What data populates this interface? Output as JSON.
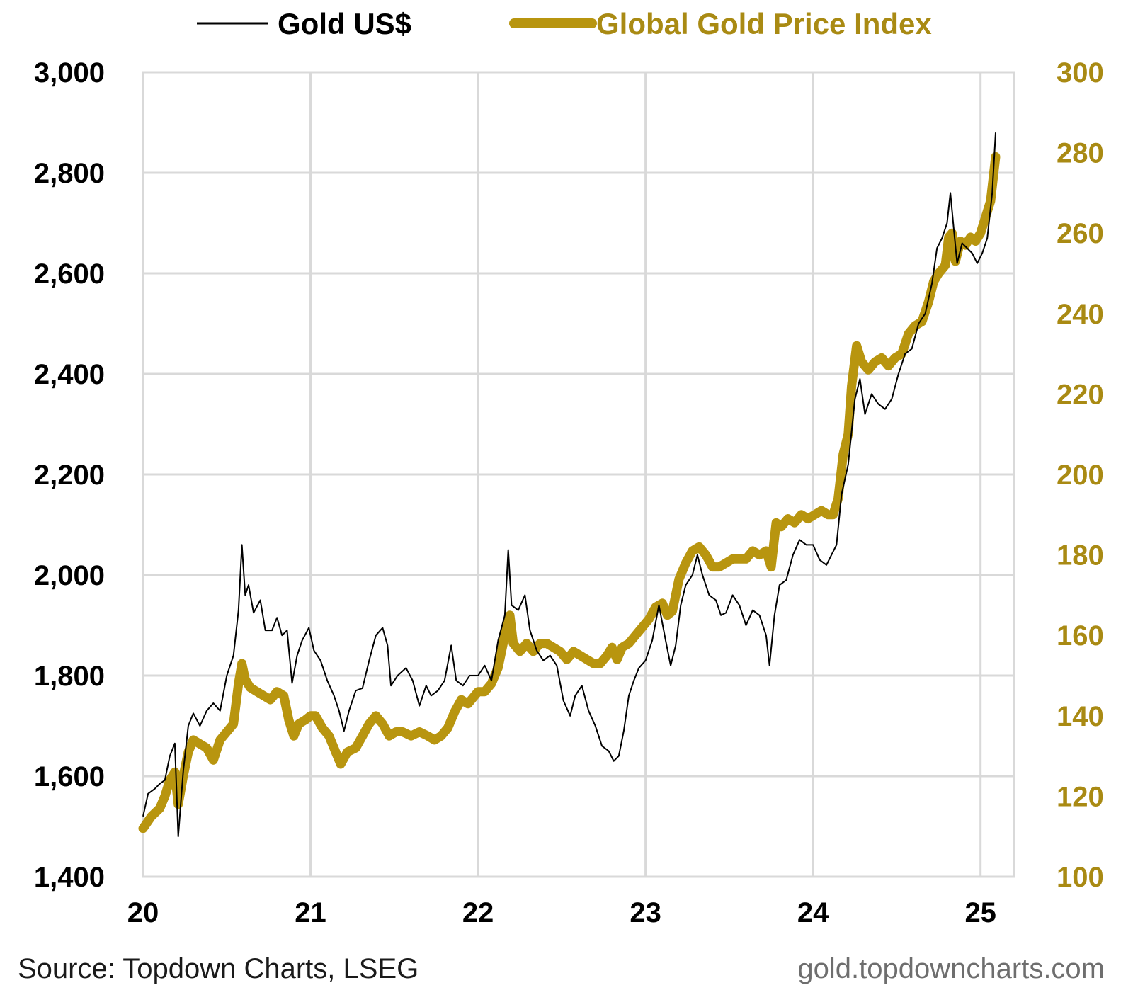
{
  "chart_data": {
    "type": "line",
    "title": "",
    "legend_position": "top",
    "x_axis": {
      "label": "",
      "ticks": [
        {
          "value": 2020,
          "label": "20"
        },
        {
          "value": 2021,
          "label": "21"
        },
        {
          "value": 2022,
          "label": "22"
        },
        {
          "value": 2023,
          "label": "23"
        },
        {
          "value": 2024,
          "label": "24"
        },
        {
          "value": 2025,
          "label": "25"
        }
      ],
      "range": [
        2020.0,
        2025.1
      ]
    },
    "y_left": {
      "label": "",
      "range": [
        1400,
        3000
      ],
      "ticks": [
        "1,400",
        "1,600",
        "1,800",
        "2,000",
        "2,200",
        "2,400",
        "2,600",
        "2,800",
        "3,000"
      ]
    },
    "y_right": {
      "label": "",
      "range": [
        100,
        300
      ],
      "ticks": [
        "100",
        "120",
        "140",
        "160",
        "180",
        "200",
        "220",
        "240",
        "260",
        "280",
        "300"
      ]
    },
    "grid": true,
    "series": [
      {
        "name": "Gold US$",
        "axis": "left",
        "color": "#000000",
        "points": [
          [
            2020.0,
            1520
          ],
          [
            2020.03,
            1565
          ],
          [
            2020.07,
            1575
          ],
          [
            2020.1,
            1585
          ],
          [
            2020.13,
            1592
          ],
          [
            2020.16,
            1640
          ],
          [
            2020.19,
            1665
          ],
          [
            2020.21,
            1480
          ],
          [
            2020.24,
            1610
          ],
          [
            2020.27,
            1700
          ],
          [
            2020.3,
            1725
          ],
          [
            2020.34,
            1700
          ],
          [
            2020.38,
            1730
          ],
          [
            2020.42,
            1745
          ],
          [
            2020.46,
            1730
          ],
          [
            2020.5,
            1800
          ],
          [
            2020.54,
            1840
          ],
          [
            2020.57,
            1930
          ],
          [
            2020.59,
            2060
          ],
          [
            2020.61,
            1960
          ],
          [
            2020.63,
            1980
          ],
          [
            2020.66,
            1925
          ],
          [
            2020.7,
            1950
          ],
          [
            2020.73,
            1890
          ],
          [
            2020.77,
            1890
          ],
          [
            2020.8,
            1915
          ],
          [
            2020.83,
            1880
          ],
          [
            2020.86,
            1890
          ],
          [
            2020.89,
            1785
          ],
          [
            2020.92,
            1840
          ],
          [
            2020.95,
            1870
          ],
          [
            2020.99,
            1895
          ],
          [
            2021.02,
            1850
          ],
          [
            2021.06,
            1830
          ],
          [
            2021.1,
            1790
          ],
          [
            2021.14,
            1760
          ],
          [
            2021.17,
            1730
          ],
          [
            2021.2,
            1690
          ],
          [
            2021.23,
            1730
          ],
          [
            2021.27,
            1770
          ],
          [
            2021.31,
            1775
          ],
          [
            2021.35,
            1830
          ],
          [
            2021.39,
            1880
          ],
          [
            2021.43,
            1895
          ],
          [
            2021.46,
            1860
          ],
          [
            2021.48,
            1780
          ],
          [
            2021.52,
            1800
          ],
          [
            2021.57,
            1815
          ],
          [
            2021.61,
            1790
          ],
          [
            2021.65,
            1740
          ],
          [
            2021.69,
            1780
          ],
          [
            2021.72,
            1760
          ],
          [
            2021.76,
            1770
          ],
          [
            2021.8,
            1790
          ],
          [
            2021.84,
            1860
          ],
          [
            2021.87,
            1790
          ],
          [
            2021.91,
            1780
          ],
          [
            2021.95,
            1800
          ],
          [
            2022.0,
            1800
          ],
          [
            2022.04,
            1820
          ],
          [
            2022.08,
            1790
          ],
          [
            2022.12,
            1870
          ],
          [
            2022.16,
            1920
          ],
          [
            2022.18,
            2050
          ],
          [
            2022.2,
            1940
          ],
          [
            2022.24,
            1930
          ],
          [
            2022.28,
            1960
          ],
          [
            2022.31,
            1890
          ],
          [
            2022.35,
            1850
          ],
          [
            2022.39,
            1830
          ],
          [
            2022.43,
            1840
          ],
          [
            2022.47,
            1820
          ],
          [
            2022.51,
            1750
          ],
          [
            2022.55,
            1720
          ],
          [
            2022.58,
            1760
          ],
          [
            2022.62,
            1780
          ],
          [
            2022.66,
            1730
          ],
          [
            2022.7,
            1700
          ],
          [
            2022.74,
            1660
          ],
          [
            2022.78,
            1650
          ],
          [
            2022.81,
            1630
          ],
          [
            2022.84,
            1640
          ],
          [
            2022.87,
            1690
          ],
          [
            2022.9,
            1760
          ],
          [
            2022.93,
            1790
          ],
          [
            2022.96,
            1815
          ],
          [
            2023.0,
            1830
          ],
          [
            2023.04,
            1870
          ],
          [
            2023.08,
            1940
          ],
          [
            2023.12,
            1870
          ],
          [
            2023.15,
            1820
          ],
          [
            2023.18,
            1860
          ],
          [
            2023.21,
            1940
          ],
          [
            2023.24,
            1980
          ],
          [
            2023.28,
            2000
          ],
          [
            2023.31,
            2040
          ],
          [
            2023.34,
            2000
          ],
          [
            2023.38,
            1960
          ],
          [
            2023.42,
            1950
          ],
          [
            2023.45,
            1920
          ],
          [
            2023.48,
            1925
          ],
          [
            2023.52,
            1960
          ],
          [
            2023.56,
            1940
          ],
          [
            2023.6,
            1900
          ],
          [
            2023.64,
            1930
          ],
          [
            2023.68,
            1920
          ],
          [
            2023.72,
            1880
          ],
          [
            2023.74,
            1820
          ],
          [
            2023.77,
            1920
          ],
          [
            2023.8,
            1980
          ],
          [
            2023.84,
            1990
          ],
          [
            2023.88,
            2040
          ],
          [
            2023.92,
            2070
          ],
          [
            2023.96,
            2060
          ],
          [
            2024.0,
            2060
          ],
          [
            2024.04,
            2030
          ],
          [
            2024.08,
            2020
          ],
          [
            2024.11,
            2040
          ],
          [
            2024.14,
            2060
          ],
          [
            2024.17,
            2160
          ],
          [
            2024.21,
            2220
          ],
          [
            2024.25,
            2350
          ],
          [
            2024.28,
            2390
          ],
          [
            2024.31,
            2320
          ],
          [
            2024.35,
            2360
          ],
          [
            2024.39,
            2340
          ],
          [
            2024.43,
            2330
          ],
          [
            2024.47,
            2350
          ],
          [
            2024.51,
            2400
          ],
          [
            2024.55,
            2440
          ],
          [
            2024.59,
            2450
          ],
          [
            2024.63,
            2500
          ],
          [
            2024.67,
            2520
          ],
          [
            2024.71,
            2580
          ],
          [
            2024.74,
            2650
          ],
          [
            2024.77,
            2670
          ],
          [
            2024.8,
            2700
          ],
          [
            2024.82,
            2760
          ],
          [
            2024.84,
            2690
          ],
          [
            2024.86,
            2620
          ],
          [
            2024.89,
            2660
          ],
          [
            2024.92,
            2650
          ],
          [
            2024.95,
            2640
          ],
          [
            2024.98,
            2620
          ],
          [
            2025.01,
            2640
          ],
          [
            2025.04,
            2670
          ],
          [
            2025.07,
            2760
          ],
          [
            2025.09,
            2880
          ]
        ]
      },
      {
        "name": "Global Gold Price Index",
        "axis": "right",
        "color": "#b8950f",
        "points": [
          [
            2020.0,
            112
          ],
          [
            2020.05,
            115
          ],
          [
            2020.1,
            117
          ],
          [
            2020.13,
            120
          ],
          [
            2020.16,
            124
          ],
          [
            2020.19,
            126
          ],
          [
            2020.21,
            118
          ],
          [
            2020.24,
            125
          ],
          [
            2020.27,
            131
          ],
          [
            2020.3,
            134
          ],
          [
            2020.34,
            133
          ],
          [
            2020.38,
            132
          ],
          [
            2020.42,
            129
          ],
          [
            2020.46,
            134
          ],
          [
            2020.5,
            136
          ],
          [
            2020.54,
            138
          ],
          [
            2020.57,
            148
          ],
          [
            2020.59,
            153
          ],
          [
            2020.61,
            149
          ],
          [
            2020.64,
            147
          ],
          [
            2020.68,
            146
          ],
          [
            2020.72,
            145
          ],
          [
            2020.76,
            144
          ],
          [
            2020.8,
            146
          ],
          [
            2020.84,
            145
          ],
          [
            2020.87,
            139
          ],
          [
            2020.9,
            135
          ],
          [
            2020.93,
            138
          ],
          [
            2020.97,
            139
          ],
          [
            2021.0,
            140
          ],
          [
            2021.03,
            140
          ],
          [
            2021.07,
            137
          ],
          [
            2021.11,
            135
          ],
          [
            2021.15,
            131
          ],
          [
            2021.18,
            128
          ],
          [
            2021.22,
            131
          ],
          [
            2021.27,
            132
          ],
          [
            2021.31,
            135
          ],
          [
            2021.35,
            138
          ],
          [
            2021.39,
            140
          ],
          [
            2021.43,
            138
          ],
          [
            2021.47,
            135
          ],
          [
            2021.51,
            136
          ],
          [
            2021.55,
            136
          ],
          [
            2021.6,
            135
          ],
          [
            2021.65,
            136
          ],
          [
            2021.7,
            135
          ],
          [
            2021.74,
            134
          ],
          [
            2021.78,
            135
          ],
          [
            2021.82,
            137
          ],
          [
            2021.86,
            141
          ],
          [
            2021.9,
            144
          ],
          [
            2021.94,
            143
          ],
          [
            2022.0,
            146
          ],
          [
            2022.04,
            146
          ],
          [
            2022.08,
            148
          ],
          [
            2022.12,
            152
          ],
          [
            2022.16,
            160
          ],
          [
            2022.19,
            165
          ],
          [
            2022.21,
            158
          ],
          [
            2022.25,
            156
          ],
          [
            2022.29,
            158
          ],
          [
            2022.33,
            156
          ],
          [
            2022.37,
            158
          ],
          [
            2022.41,
            158
          ],
          [
            2022.45,
            157
          ],
          [
            2022.49,
            156
          ],
          [
            2022.53,
            154
          ],
          [
            2022.57,
            156
          ],
          [
            2022.61,
            155
          ],
          [
            2022.65,
            154
          ],
          [
            2022.69,
            153
          ],
          [
            2022.73,
            153
          ],
          [
            2022.77,
            155
          ],
          [
            2022.8,
            157
          ],
          [
            2022.83,
            154
          ],
          [
            2022.86,
            157
          ],
          [
            2022.9,
            158
          ],
          [
            2022.94,
            160
          ],
          [
            2022.98,
            162
          ],
          [
            2023.02,
            164
          ],
          [
            2023.06,
            167
          ],
          [
            2023.1,
            168
          ],
          [
            2023.13,
            165
          ],
          [
            2023.16,
            166
          ],
          [
            2023.2,
            174
          ],
          [
            2023.24,
            178
          ],
          [
            2023.28,
            181
          ],
          [
            2023.32,
            182
          ],
          [
            2023.36,
            180
          ],
          [
            2023.4,
            177
          ],
          [
            2023.44,
            177
          ],
          [
            2023.48,
            178
          ],
          [
            2023.52,
            179
          ],
          [
            2023.56,
            179
          ],
          [
            2023.6,
            179
          ],
          [
            2023.64,
            181
          ],
          [
            2023.68,
            180
          ],
          [
            2023.72,
            181
          ],
          [
            2023.75,
            177
          ],
          [
            2023.78,
            188
          ],
          [
            2023.81,
            187
          ],
          [
            2023.85,
            189
          ],
          [
            2023.89,
            188
          ],
          [
            2023.93,
            190
          ],
          [
            2023.97,
            189
          ],
          [
            2024.01,
            190
          ],
          [
            2024.05,
            191
          ],
          [
            2024.09,
            190
          ],
          [
            2024.12,
            190
          ],
          [
            2024.15,
            194
          ],
          [
            2024.18,
            205
          ],
          [
            2024.21,
            210
          ],
          [
            2024.23,
            222
          ],
          [
            2024.26,
            232
          ],
          [
            2024.29,
            228
          ],
          [
            2024.33,
            226
          ],
          [
            2024.37,
            228
          ],
          [
            2024.41,
            229
          ],
          [
            2024.45,
            227
          ],
          [
            2024.49,
            229
          ],
          [
            2024.53,
            230
          ],
          [
            2024.57,
            235
          ],
          [
            2024.61,
            237
          ],
          [
            2024.65,
            238
          ],
          [
            2024.69,
            243
          ],
          [
            2024.72,
            248
          ],
          [
            2024.75,
            250
          ],
          [
            2024.79,
            252
          ],
          [
            2024.81,
            259
          ],
          [
            2024.83,
            260
          ],
          [
            2024.85,
            253
          ],
          [
            2024.88,
            258
          ],
          [
            2024.91,
            257
          ],
          [
            2024.94,
            259
          ],
          [
            2024.97,
            258
          ],
          [
            2025.0,
            260
          ],
          [
            2025.03,
            264
          ],
          [
            2025.06,
            268
          ],
          [
            2025.09,
            279
          ]
        ]
      }
    ]
  },
  "legend": {
    "gold_usd_label": "Gold US$",
    "global_index_label": "Global Gold Price Index"
  },
  "footer": {
    "source": "Source: Topdown Charts, LSEG",
    "site": "gold.topdowncharts.com"
  },
  "colors": {
    "gold": "#b8950f",
    "gold_text": "#a98a13",
    "black": "#000000",
    "grid": "#d9d9d9"
  }
}
